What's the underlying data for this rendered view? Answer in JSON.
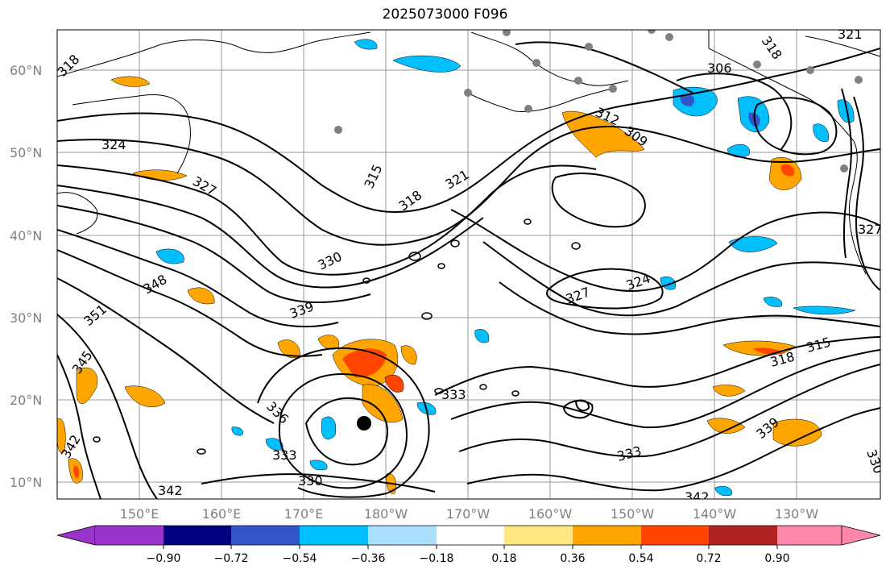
{
  "title": "2025073000 F096",
  "lat_labels": [
    "60°N",
    "50°N",
    "40°N",
    "30°N",
    "20°N",
    "10°N"
  ],
  "lon_labels": [
    "150°E",
    "160°E",
    "170°E",
    "180°W",
    "170°W",
    "160°W",
    "150°W",
    "140°W",
    "130°W"
  ],
  "colorbar": {
    "ticks": [
      "−0.90",
      "−0.72",
      "−0.54",
      "−0.36",
      "−0.18",
      "0.18",
      "0.36",
      "0.54",
      "0.72",
      "0.90"
    ],
    "colors": [
      "#9933cc",
      "#000080",
      "#3355cc",
      "#00bfff",
      "#aadeff",
      "#ffffff",
      "#ffe680",
      "#ffa500",
      "#ff4500",
      "#b22222",
      "#ff88aa"
    ]
  },
  "contour_labels": [
    "318",
    "324",
    "327",
    "315",
    "318",
    "321",
    "312",
    "309",
    "306",
    "318",
    "321",
    "330",
    "348",
    "351",
    "339",
    "345",
    "327",
    "324",
    "318",
    "315",
    "342",
    "336",
    "333",
    "333",
    "330",
    "342",
    "339",
    "333",
    "342",
    "330",
    "327"
  ],
  "colors": {
    "contour": "#000000",
    "grid": "#999999",
    "coast": "#000000"
  }
}
